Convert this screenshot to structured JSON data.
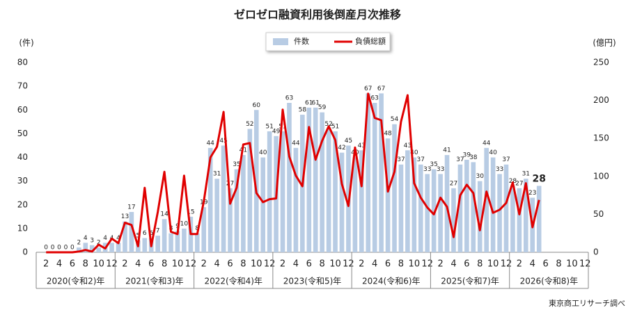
{
  "chart_data": {
    "type": "combo",
    "title": "ゼロゼロ融資利用後倒産月次推移",
    "y_label": "(件)",
    "y2_label": "(億円)",
    "source": "東京商工リサーチ調べ",
    "categories": [
      null,
      "2",
      null,
      "4",
      null,
      "6",
      null,
      "8",
      null,
      "10",
      null,
      "12",
      null,
      "2",
      null,
      "4",
      null,
      "6",
      null,
      "8",
      null,
      "10",
      null,
      "12",
      null,
      "2",
      null,
      "4",
      null,
      "6",
      null,
      "8",
      null,
      "10",
      null,
      "12",
      null,
      "2",
      null,
      "4",
      null,
      "6",
      null,
      "8",
      null,
      "10",
      null,
      "12",
      null,
      "2",
      null,
      "4",
      null,
      "6",
      null,
      "8",
      null,
      "10",
      null,
      "12",
      null,
      "2",
      null,
      "4",
      null,
      "6",
      null,
      "8",
      null,
      "10",
      null,
      "12",
      null,
      "2",
      null,
      "4",
      null,
      "6",
      null,
      "8",
      null,
      "10",
      null,
      "12"
    ],
    "groups": [
      "2020(令和2)年",
      "2021(令和3)年",
      "2022(令和4)年",
      "2023(令和5)年",
      "2024(令和6)年",
      "2025(令和7)年",
      "2026(令和8)年"
    ],
    "series": [
      {
        "name": "件数",
        "type": "bar",
        "color": "#b8cce4",
        "values": [
          null,
          0,
          0,
          0,
          0,
          0,
          2,
          4,
          3,
          2,
          4,
          4,
          4,
          13,
          17,
          5,
          6,
          6,
          7,
          14,
          8,
          9,
          10,
          15,
          8,
          19,
          44,
          31,
          45,
          27,
          35,
          41,
          52,
          60,
          40,
          51,
          49,
          51,
          63,
          44,
          58,
          61,
          61,
          59,
          52,
          51,
          42,
          45,
          40,
          43,
          67,
          63,
          67,
          48,
          54,
          37,
          43,
          40,
          37,
          33,
          35,
          33,
          41,
          27,
          37,
          39,
          38,
          30,
          44,
          40,
          33,
          37,
          28,
          27,
          31,
          23,
          28,
          null,
          null,
          null,
          null,
          null,
          null,
          null
        ]
      },
      {
        "name": "負債総額",
        "type": "line",
        "axis": "y2",
        "color": "#e00000",
        "values": [
          null,
          0,
          0,
          0,
          0,
          0,
          1,
          3,
          1,
          10,
          5,
          18,
          12,
          39,
          36,
          8,
          85,
          8,
          53,
          106,
          27,
          24,
          101,
          24,
          24,
          67,
          125,
          139,
          185,
          64,
          85,
          142,
          144,
          78,
          66,
          70,
          71,
          188,
          126,
          101,
          87,
          165,
          122,
          147,
          166,
          148,
          90,
          61,
          138,
          87,
          209,
          177,
          174,
          80,
          106,
          172,
          207,
          91,
          72,
          59,
          50,
          72,
          60,
          20,
          75,
          89,
          78,
          29,
          80,
          52,
          56,
          65,
          92,
          50,
          91,
          33,
          69,
          null,
          null,
          null,
          null,
          null,
          null,
          null
        ]
      }
    ],
    "ylim": [
      0,
      80
    ],
    "yticks": [
      0,
      10,
      20,
      30,
      40,
      50,
      60,
      70,
      80
    ],
    "y2lim": [
      0,
      250
    ],
    "y2ticks": [
      0,
      50,
      100,
      150,
      200,
      250
    ]
  }
}
